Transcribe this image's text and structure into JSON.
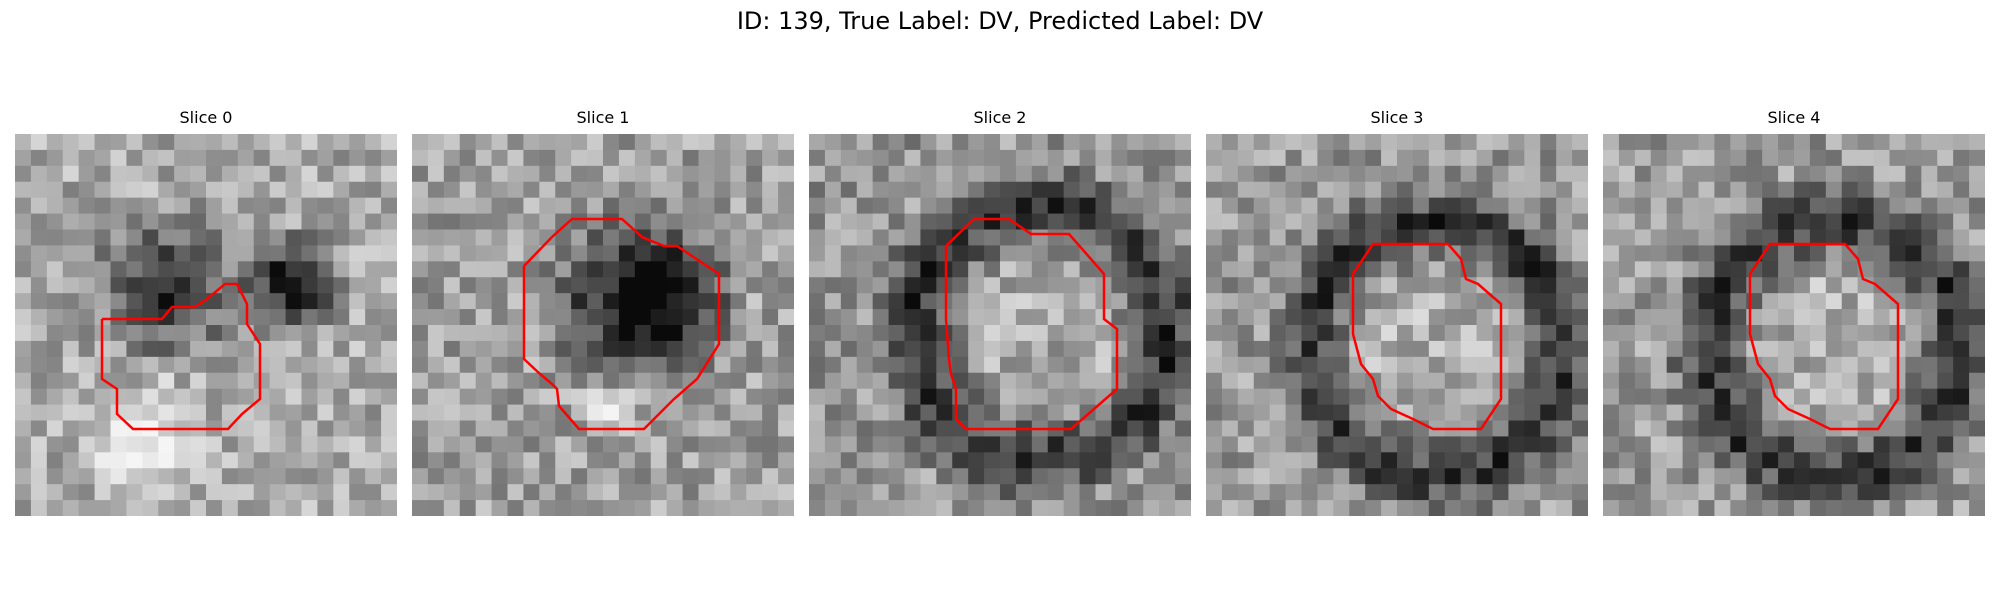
{
  "figure": {
    "title": "ID: 139, True Label: DV, Predicted Label: DV"
  },
  "panels": [
    {
      "title": "Slice 0"
    },
    {
      "title": "Slice 1"
    },
    {
      "title": "Slice 2"
    },
    {
      "title": "Slice 3"
    },
    {
      "title": "Slice 4"
    }
  ],
  "colors": {
    "contour": "#ff0000",
    "background": "#ffffff"
  }
}
